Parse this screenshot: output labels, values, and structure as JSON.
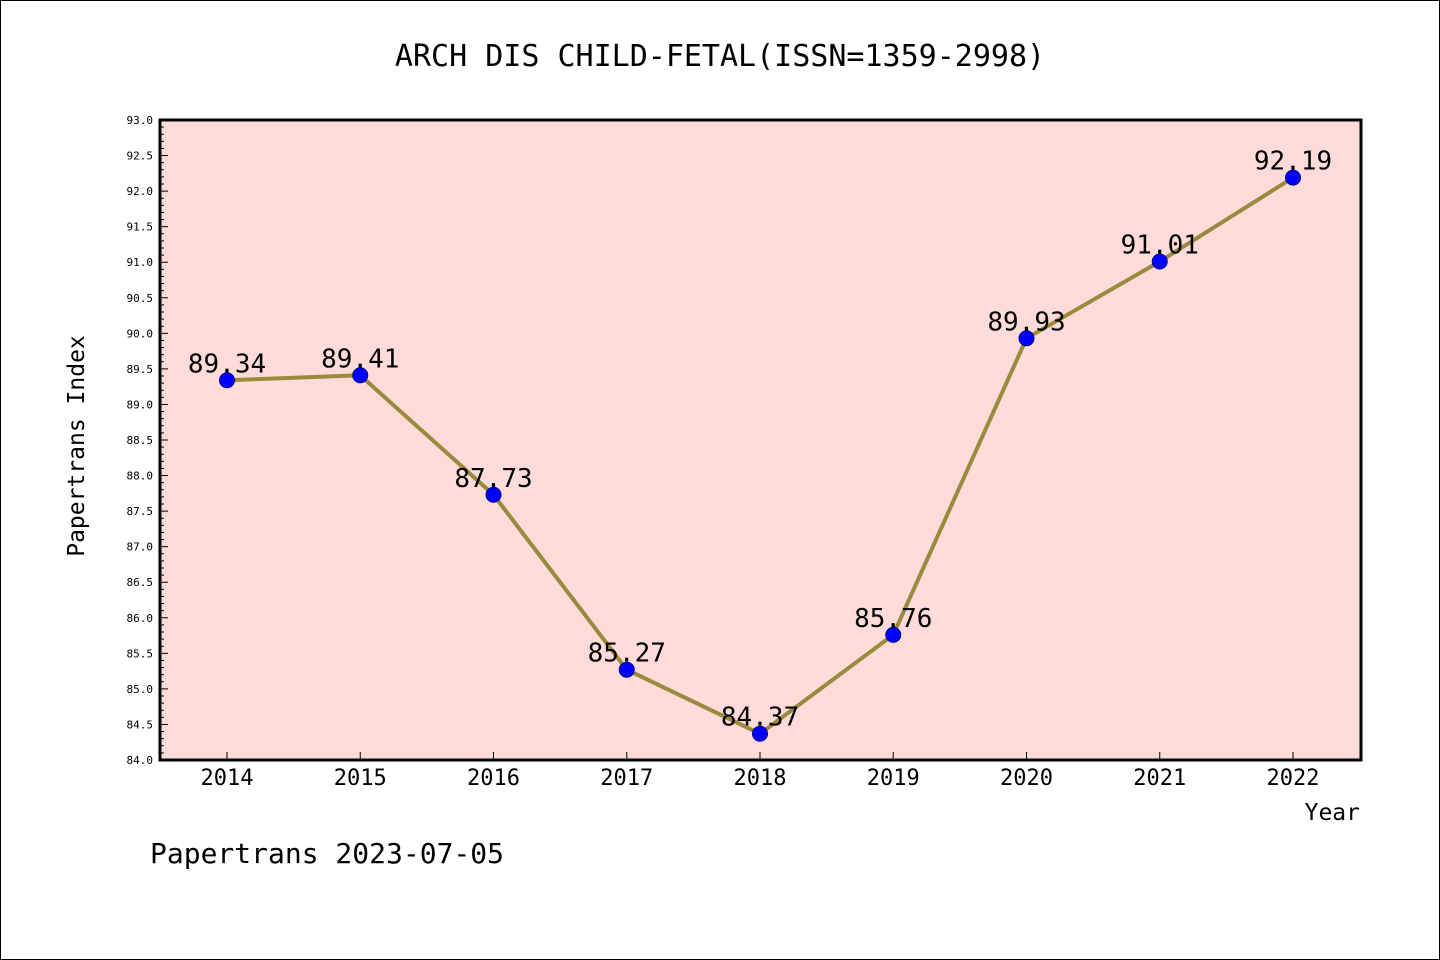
{
  "chart_data": {
    "type": "line",
    "title": "ARCH DIS CHILD-FETAL(ISSN=1359-2998)",
    "xlabel": "Year",
    "ylabel": "Papertrans Index",
    "categories": [
      "2014",
      "2015",
      "2016",
      "2017",
      "2018",
      "2019",
      "2020",
      "2021",
      "2022"
    ],
    "series": [
      {
        "values": [
          89.34,
          89.41,
          87.73,
          85.27,
          84.37,
          85.76,
          89.93,
          91.01,
          92.19
        ],
        "labels": [
          "89.34",
          "89.41",
          "87.73",
          "85.27",
          "84.37",
          "85.76",
          "89.93",
          "91.01",
          "92.19"
        ]
      }
    ],
    "ylim": [
      84.0,
      93.0
    ],
    "yticks": [
      "84.0",
      "84.5",
      "85.0",
      "85.5",
      "86.0",
      "86.5",
      "87.0",
      "87.5",
      "88.0",
      "88.5",
      "89.0",
      "89.5",
      "90.0",
      "90.5",
      "91.0",
      "91.5",
      "92.0",
      "92.5",
      "93.0"
    ],
    "grid": false,
    "footer": "Papertrans 2023-07-05",
    "colors": {
      "plot_background": "#fddbd8",
      "line": "#9a8a3e",
      "marker": "#0000ff",
      "marker_edge": "#00008b",
      "frame": "#000000"
    }
  }
}
